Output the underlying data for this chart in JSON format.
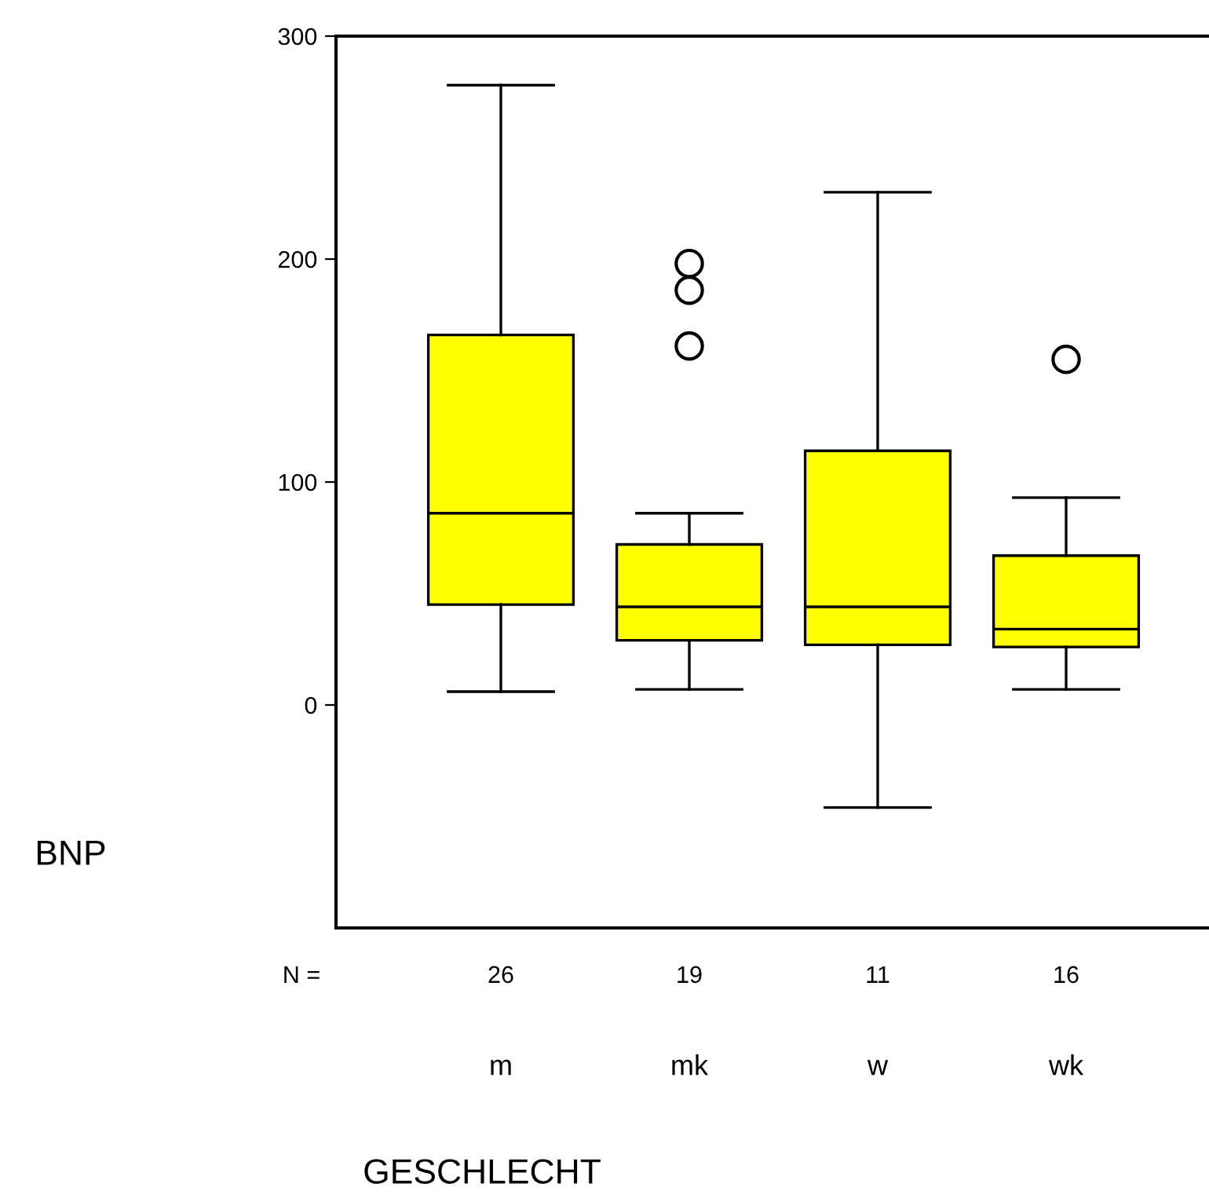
{
  "chart_data": {
    "type": "box",
    "xlabel": "GESCHLECHT",
    "ylabel": "BNP",
    "categories": [
      "m",
      "mk",
      "w",
      "wk"
    ],
    "boxes": [
      {
        "low": 6,
        "q1": 45,
        "median": 86,
        "q3": 166,
        "high": 278
      },
      {
        "low": 7,
        "q1": 29,
        "median": 44,
        "q3": 72,
        "high": 86,
        "outliers": [
          198,
          186,
          161
        ]
      },
      {
        "low": -46,
        "q1": 27,
        "median": 44,
        "q3": 114,
        "high": 230
      },
      {
        "low": 7,
        "q1": 26,
        "median": 34,
        "q3": 67,
        "high": 93,
        "outliers": [
          155
        ]
      }
    ],
    "color": "#ffff00",
    "marker": "circle",
    "ylim": [
      -100,
      300
    ],
    "yticks": [
      0,
      100,
      200,
      300
    ],
    "grid": false,
    "annotations": [
      "N =",
      "26",
      "19",
      "11",
      "16"
    ]
  }
}
